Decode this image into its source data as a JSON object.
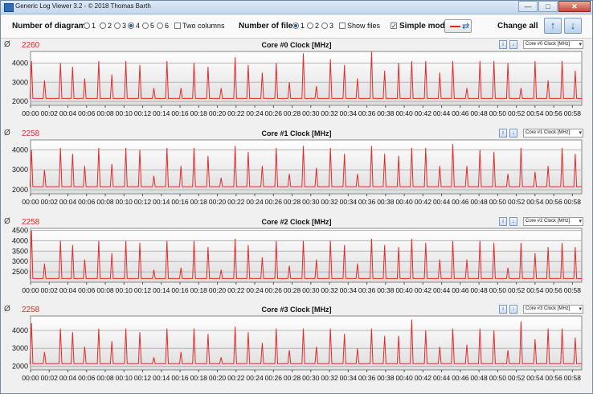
{
  "window": {
    "title": "Generic Log Viewer 3.2 - © 2018 Thomas Barth",
    "minimize": "—",
    "maximize": "□",
    "close": "✕"
  },
  "toolbar": {
    "number_of_diagrams_label": "Number of diagrams",
    "diagram_options": [
      "1",
      "2",
      "3",
      "4",
      "5",
      "6"
    ],
    "diagram_selected": "4",
    "two_columns_label": "Two columns",
    "number_of_files_label": "Number of files",
    "file_options": [
      "1",
      "2",
      "3"
    ],
    "file_selected": "1",
    "show_files_label": "Show files",
    "simple_mode_label": "Simple mode",
    "simple_mode_checked": true,
    "change_all_label": "Change all"
  },
  "colors": {
    "series": "#e22b2b",
    "plot_bg_top": "#ffffff",
    "plot_bg_bottom": "#dedede",
    "accent": "#1d62b8"
  },
  "icons": {
    "avg": "average-icon",
    "info": "info-icon",
    "download": "download-icon",
    "up": "arrow-up-icon",
    "down": "arrow-down-icon"
  },
  "chart_data": [
    {
      "type": "line",
      "title": "Core #0 Clock [MHz]",
      "average_symbol": "Ø",
      "average": "2260",
      "dropdown": "Core #0 Clock [MHz]",
      "ylim": [
        1800,
        4600
      ],
      "yticks": [
        2000,
        3000,
        4000
      ],
      "xlim": [
        0,
        59
      ],
      "xticks": [
        "00:00",
        "00:02",
        "00:04",
        "00:06",
        "00:08",
        "00:10",
        "00:12",
        "00:14",
        "00:16",
        "00:18",
        "00:20",
        "00:22",
        "00:24",
        "00:26",
        "00:28",
        "00:30",
        "00:32",
        "00:34",
        "00:36",
        "00:38",
        "00:40",
        "00:42",
        "00:44",
        "00:46",
        "00:48",
        "00:50",
        "00:52",
        "00:54",
        "00:56",
        "00:58"
      ],
      "series": [
        {
          "baseline": 2160,
          "peaks": [
            [
              0.1,
              4100
            ],
            [
              1.5,
              3100
            ],
            [
              3.2,
              4000
            ],
            [
              4.5,
              3800
            ],
            [
              5.8,
              3200
            ],
            [
              7.3,
              4100
            ],
            [
              8.7,
              3400
            ],
            [
              10.2,
              4100
            ],
            [
              11.7,
              3900
            ],
            [
              13.2,
              2700
            ],
            [
              14.6,
              4100
            ],
            [
              16.1,
              2700
            ],
            [
              17.5,
              4000
            ],
            [
              19.0,
              3800
            ],
            [
              20.4,
              2700
            ],
            [
              21.9,
              4300
            ],
            [
              23.3,
              3900
            ],
            [
              24.8,
              3500
            ],
            [
              26.3,
              4000
            ],
            [
              27.7,
              3000
            ],
            [
              29.2,
              4500
            ],
            [
              30.6,
              2800
            ],
            [
              32.1,
              4200
            ],
            [
              33.6,
              3900
            ],
            [
              35.0,
              3200
            ],
            [
              36.5,
              4600
            ],
            [
              37.9,
              3600
            ],
            [
              39.4,
              4000
            ],
            [
              40.8,
              4100
            ],
            [
              42.3,
              4100
            ],
            [
              43.8,
              3500
            ],
            [
              45.2,
              4100
            ],
            [
              46.7,
              2700
            ],
            [
              48.1,
              4100
            ],
            [
              49.6,
              4100
            ],
            [
              51.1,
              4000
            ],
            [
              52.5,
              2700
            ],
            [
              54.0,
              4100
            ],
            [
              55.4,
              3100
            ],
            [
              56.9,
              4100
            ],
            [
              58.3,
              3600
            ]
          ]
        }
      ]
    },
    {
      "type": "line",
      "title": "Core #1 Clock [MHz]",
      "average_symbol": "Ø",
      "average": "2258",
      "dropdown": "Core #1 Clock [MHz]",
      "ylim": [
        1800,
        4500
      ],
      "yticks": [
        2000,
        3000,
        4000
      ],
      "xlim": [
        0,
        59
      ],
      "xticks": [
        "00:00",
        "00:02",
        "00:04",
        "00:06",
        "00:08",
        "00:10",
        "00:12",
        "00:14",
        "00:16",
        "00:18",
        "00:20",
        "00:22",
        "00:24",
        "00:26",
        "00:28",
        "00:30",
        "00:32",
        "00:34",
        "00:36",
        "00:38",
        "00:40",
        "00:42",
        "00:44",
        "00:46",
        "00:48",
        "00:50",
        "00:52",
        "00:54",
        "00:56",
        "00:58"
      ],
      "series": [
        {
          "baseline": 2150,
          "peaks": [
            [
              0.1,
              4000
            ],
            [
              1.5,
              3000
            ],
            [
              3.2,
              4100
            ],
            [
              4.5,
              3800
            ],
            [
              5.8,
              3200
            ],
            [
              7.3,
              4100
            ],
            [
              8.7,
              3300
            ],
            [
              10.2,
              4100
            ],
            [
              11.7,
              4000
            ],
            [
              13.2,
              2700
            ],
            [
              14.6,
              4100
            ],
            [
              16.1,
              3200
            ],
            [
              17.5,
              4100
            ],
            [
              19.0,
              3700
            ],
            [
              20.4,
              2600
            ],
            [
              21.9,
              4200
            ],
            [
              23.3,
              3900
            ],
            [
              24.8,
              3200
            ],
            [
              26.3,
              4100
            ],
            [
              27.7,
              2800
            ],
            [
              29.2,
              4200
            ],
            [
              30.6,
              3100
            ],
            [
              32.1,
              4100
            ],
            [
              33.6,
              3800
            ],
            [
              35.0,
              2800
            ],
            [
              36.5,
              4200
            ],
            [
              37.9,
              3800
            ],
            [
              39.4,
              3700
            ],
            [
              40.8,
              4100
            ],
            [
              42.3,
              4100
            ],
            [
              43.8,
              3200
            ],
            [
              45.2,
              4300
            ],
            [
              46.7,
              3200
            ],
            [
              48.1,
              4000
            ],
            [
              49.6,
              3900
            ],
            [
              51.1,
              2800
            ],
            [
              52.5,
              4100
            ],
            [
              54.0,
              2900
            ],
            [
              55.4,
              3200
            ],
            [
              56.9,
              4100
            ],
            [
              58.3,
              3800
            ]
          ]
        }
      ]
    },
    {
      "type": "line",
      "title": "Core #2 Clock [MHz]",
      "average_symbol": "Ø",
      "average": "2258",
      "dropdown": "Core #2 Clock [MHz]",
      "ylim": [
        2000,
        4600
      ],
      "yticks": [
        2500,
        3000,
        3500,
        4000,
        4500
      ],
      "xlim": [
        0,
        59
      ],
      "xticks": [
        "00:00",
        "00:02",
        "00:04",
        "00:06",
        "00:08",
        "00:10",
        "00:12",
        "00:14",
        "00:16",
        "00:18",
        "00:20",
        "00:22",
        "00:24",
        "00:26",
        "00:28",
        "00:30",
        "00:32",
        "00:34",
        "00:36",
        "00:38",
        "00:40",
        "00:42",
        "00:44",
        "00:46",
        "00:48",
        "00:50",
        "00:52",
        "00:54",
        "00:56",
        "00:58"
      ],
      "series": [
        {
          "baseline": 2180,
          "peaks": [
            [
              0.1,
              4500
            ],
            [
              1.5,
              2900
            ],
            [
              3.2,
              4000
            ],
            [
              4.5,
              3800
            ],
            [
              5.8,
              3100
            ],
            [
              7.3,
              4000
            ],
            [
              8.7,
              3400
            ],
            [
              10.2,
              4000
            ],
            [
              11.7,
              3900
            ],
            [
              13.2,
              2600
            ],
            [
              14.6,
              4000
            ],
            [
              16.1,
              2700
            ],
            [
              17.5,
              4000
            ],
            [
              19.0,
              3700
            ],
            [
              20.4,
              2600
            ],
            [
              21.9,
              4100
            ],
            [
              23.3,
              3800
            ],
            [
              24.8,
              3200
            ],
            [
              26.3,
              4000
            ],
            [
              27.7,
              2800
            ],
            [
              29.2,
              4000
            ],
            [
              30.6,
              3100
            ],
            [
              32.1,
              4000
            ],
            [
              33.6,
              3800
            ],
            [
              35.0,
              2900
            ],
            [
              36.5,
              4100
            ],
            [
              37.9,
              3800
            ],
            [
              39.4,
              3700
            ],
            [
              40.8,
              4100
            ],
            [
              42.3,
              3900
            ],
            [
              43.8,
              3100
            ],
            [
              45.2,
              4000
            ],
            [
              46.7,
              3100
            ],
            [
              48.1,
              4000
            ],
            [
              49.6,
              3900
            ],
            [
              51.1,
              2700
            ],
            [
              52.5,
              3900
            ],
            [
              54.0,
              3400
            ],
            [
              55.4,
              3700
            ],
            [
              56.9,
              3900
            ],
            [
              58.3,
              3700
            ]
          ]
        }
      ]
    },
    {
      "type": "line",
      "title": "Core #3 Clock [MHz]",
      "average_symbol": "Ø",
      "average": "2258",
      "dropdown": "Core #3 Clock [MHz]",
      "ylim": [
        1800,
        4800
      ],
      "yticks": [
        2000,
        3000,
        4000
      ],
      "xlim": [
        0,
        59
      ],
      "xticks": [
        "00:00",
        "00:02",
        "00:04",
        "00:06",
        "00:08",
        "00:10",
        "00:12",
        "00:14",
        "00:16",
        "00:18",
        "00:20",
        "00:22",
        "00:24",
        "00:26",
        "00:28",
        "00:30",
        "00:32",
        "00:34",
        "00:36",
        "00:38",
        "00:40",
        "00:42",
        "00:44",
        "00:46",
        "00:48",
        "00:50",
        "00:52",
        "00:54",
        "00:56",
        "00:58"
      ],
      "series": [
        {
          "baseline": 2150,
          "peaks": [
            [
              0.1,
              4400
            ],
            [
              1.5,
              2800
            ],
            [
              3.2,
              4100
            ],
            [
              4.5,
              3900
            ],
            [
              5.8,
              3100
            ],
            [
              7.3,
              4100
            ],
            [
              8.7,
              3400
            ],
            [
              10.2,
              4100
            ],
            [
              11.7,
              3900
            ],
            [
              13.2,
              2500
            ],
            [
              14.6,
              4100
            ],
            [
              16.1,
              2800
            ],
            [
              17.5,
              4100
            ],
            [
              19.0,
              3800
            ],
            [
              20.4,
              2500
            ],
            [
              21.9,
              4200
            ],
            [
              23.3,
              3900
            ],
            [
              24.8,
              3300
            ],
            [
              26.3,
              4100
            ],
            [
              27.7,
              2900
            ],
            [
              29.2,
              4100
            ],
            [
              30.6,
              3100
            ],
            [
              32.1,
              4100
            ],
            [
              33.6,
              3800
            ],
            [
              35.0,
              3000
            ],
            [
              36.5,
              4100
            ],
            [
              37.9,
              3700
            ],
            [
              39.4,
              3700
            ],
            [
              40.8,
              4600
            ],
            [
              42.3,
              4000
            ],
            [
              43.8,
              3100
            ],
            [
              45.2,
              4100
            ],
            [
              46.7,
              3200
            ],
            [
              48.1,
              4100
            ],
            [
              49.6,
              4000
            ],
            [
              51.1,
              2900
            ],
            [
              52.5,
              4500
            ],
            [
              54.0,
              3500
            ],
            [
              55.4,
              4100
            ],
            [
              56.9,
              4100
            ],
            [
              58.3,
              3600
            ]
          ]
        }
      ]
    }
  ]
}
